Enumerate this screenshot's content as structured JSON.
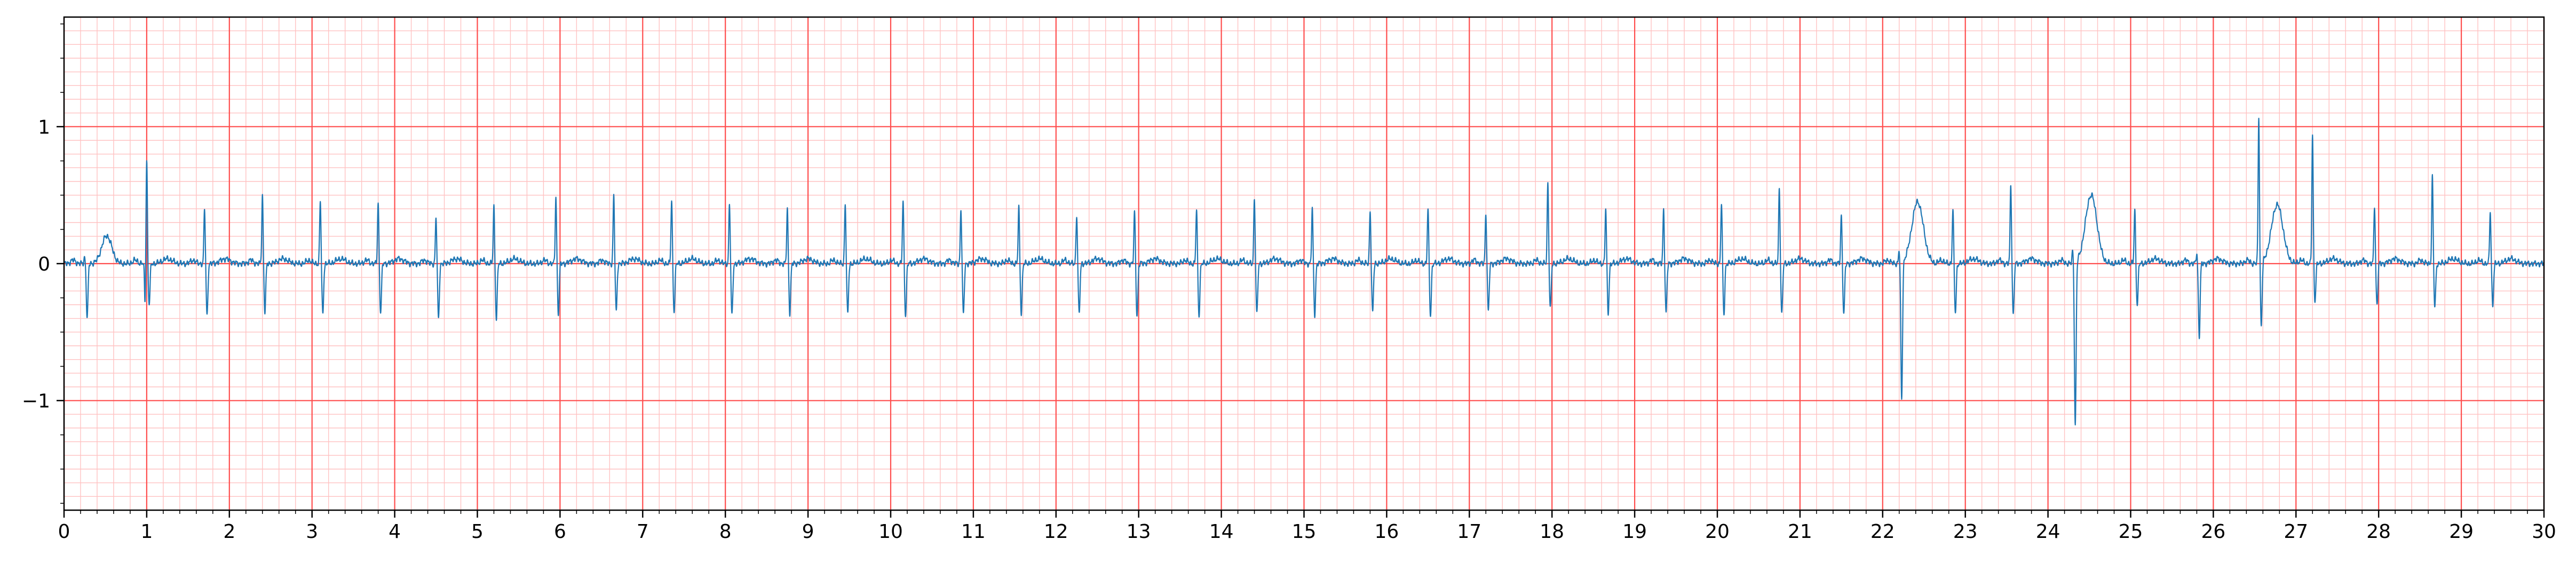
{
  "colors": {
    "major_grid": "#ff4d4d",
    "minor_grid": "#ffc2c2",
    "signal": "#1f77b4",
    "frame": "#000000"
  },
  "chart_data": {
    "type": "line",
    "title": "",
    "xlabel": "",
    "ylabel": "",
    "xlim": [
      0,
      30
    ],
    "ylim": [
      -1.8,
      1.8
    ],
    "grid": "ecg paper: major every 1 (x) / 1 (y), minor every 0.2 (x) / 0.1 (y)",
    "x_ticks": [
      0,
      1,
      2,
      3,
      4,
      5,
      6,
      7,
      8,
      9,
      10,
      11,
      12,
      13,
      14,
      15,
      16,
      17,
      18,
      19,
      20,
      21,
      22,
      23,
      24,
      25,
      26,
      27,
      28,
      29,
      30
    ],
    "x_tick_labels": [
      "0",
      "1",
      "2",
      "3",
      "4",
      "5",
      "6",
      "7",
      "8",
      "9",
      "10",
      "11",
      "12",
      "13",
      "14",
      "15",
      "16",
      "17",
      "18",
      "19",
      "20",
      "21",
      "22",
      "23",
      "24",
      "25",
      "26",
      "27",
      "28",
      "29",
      "30"
    ],
    "y_ticks": [
      -1,
      0,
      1
    ],
    "y_tick_labels": [
      "−1",
      "0",
      "1"
    ],
    "series": [
      {
        "beats": [
          {
            "t": 0.25,
            "r": 0.05,
            "s": -0.4
          },
          {
            "t": 1.0,
            "r": 0.77,
            "s": -0.3,
            "q": -0.3
          },
          {
            "t": 1.7,
            "r": 0.4,
            "s": -0.38
          },
          {
            "t": 2.4,
            "r": 0.5,
            "s": -0.35
          },
          {
            "t": 3.1,
            "r": 0.46,
            "s": -0.37
          },
          {
            "t": 3.8,
            "r": 0.45,
            "s": -0.36
          },
          {
            "t": 4.5,
            "r": 0.34,
            "s": -0.4
          },
          {
            "t": 5.2,
            "r": 0.42,
            "s": -0.4
          },
          {
            "t": 5.95,
            "r": 0.49,
            "s": -0.36
          },
          {
            "t": 6.65,
            "r": 0.5,
            "s": -0.35
          },
          {
            "t": 7.35,
            "r": 0.47,
            "s": -0.35
          },
          {
            "t": 8.05,
            "r": 0.44,
            "s": -0.38
          },
          {
            "t": 8.75,
            "r": 0.4,
            "s": -0.36
          },
          {
            "t": 9.45,
            "r": 0.44,
            "s": -0.37
          },
          {
            "t": 10.15,
            "r": 0.46,
            "s": -0.38
          },
          {
            "t": 10.85,
            "r": 0.4,
            "s": -0.37
          },
          {
            "t": 11.55,
            "r": 0.41,
            "s": -0.36
          },
          {
            "t": 12.25,
            "r": 0.36,
            "s": -0.37
          },
          {
            "t": 12.95,
            "r": 0.38,
            "s": -0.38
          },
          {
            "t": 13.7,
            "r": 0.4,
            "s": -0.38
          },
          {
            "t": 14.4,
            "r": 0.48,
            "s": -0.37
          },
          {
            "t": 15.1,
            "r": 0.4,
            "s": -0.37
          },
          {
            "t": 15.8,
            "r": 0.39,
            "s": -0.36
          },
          {
            "t": 16.5,
            "r": 0.4,
            "s": -0.38
          },
          {
            "t": 17.2,
            "r": 0.37,
            "s": -0.35
          },
          {
            "t": 17.95,
            "r": 0.6,
            "s": -0.33
          },
          {
            "t": 18.65,
            "r": 0.4,
            "s": -0.36
          },
          {
            "t": 19.35,
            "r": 0.4,
            "s": -0.36
          },
          {
            "t": 20.05,
            "r": 0.44,
            "s": -0.37
          },
          {
            "t": 20.75,
            "r": 0.56,
            "s": -0.37
          },
          {
            "t": 21.5,
            "r": 0.36,
            "s": -0.37
          },
          {
            "t": 22.2,
            "r": 0.1,
            "s": -1.0,
            "wave": 0.42
          },
          {
            "t": 22.85,
            "r": 0.4,
            "s": -0.36
          },
          {
            "t": 23.55,
            "r": 0.58,
            "s": -0.37
          },
          {
            "t": 24.3,
            "r": 0.1,
            "s": -1.2,
            "wave": 0.47
          },
          {
            "t": 25.05,
            "r": 0.4,
            "s": -0.3
          },
          {
            "t": 25.8,
            "r": 0.08,
            "s": -0.53
          },
          {
            "t": 26.55,
            "r": 1.07,
            "s": -0.46,
            "wave": 0.4
          },
          {
            "t": 27.2,
            "r": 0.95,
            "s": -0.27
          },
          {
            "t": 27.95,
            "r": 0.43,
            "s": -0.3
          },
          {
            "t": 28.65,
            "r": 0.64,
            "s": -0.32
          },
          {
            "t": 29.35,
            "r": 0.38,
            "s": -0.3
          }
        ]
      }
    ]
  }
}
